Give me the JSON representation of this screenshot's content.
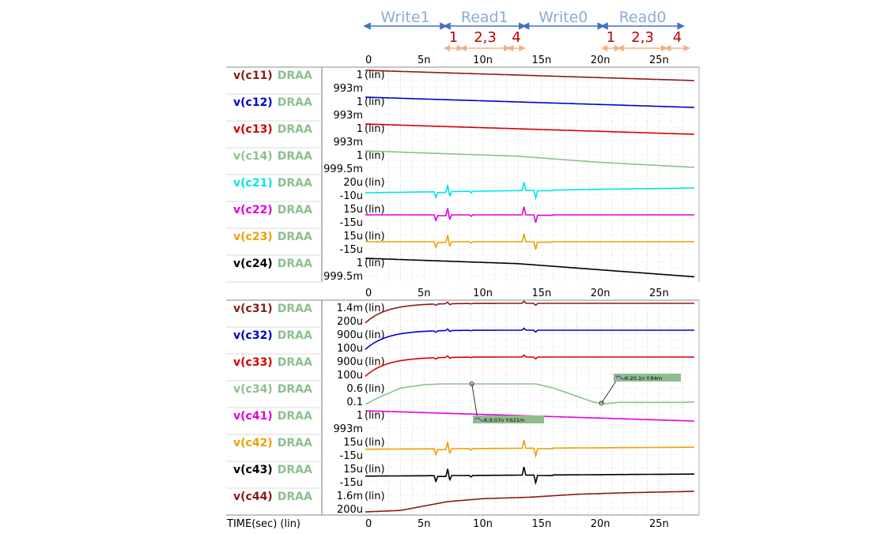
{
  "phases": [
    {
      "label": "Write1",
      "start": 0,
      "end": 6.8
    },
    {
      "label": "Read1",
      "start": 6.8,
      "end": 13.5
    },
    {
      "label": "Write0",
      "start": 13.5,
      "end": 20.2
    },
    {
      "label": "Read0",
      "start": 20.2,
      "end": 27
    }
  ],
  "subphases": [
    {
      "label": "1",
      "start": 6.8,
      "end": 8.2
    },
    {
      "label": "2,3",
      "start": 8.2,
      "end": 12.2
    },
    {
      "label": "4",
      "start": 12.2,
      "end": 13.5
    },
    {
      "label": "1",
      "start": 20.2,
      "end": 21.6
    },
    {
      "label": "2,3",
      "start": 21.6,
      "end": 25.6
    },
    {
      "label": "4",
      "start": 25.6,
      "end": 27.5
    }
  ],
  "colors": {
    "phase_text": "#8eaadb",
    "phase_arrow": "#4472c4",
    "subphase_text": "#c00000",
    "subphase_arrow": "#f4b183",
    "grid": "#c8c8c8",
    "suffix_green": "#8dbf8d",
    "cursor_box": "#8fbc8f"
  },
  "x_axis": {
    "min": 0,
    "max": 28,
    "ticks": [
      "0",
      "5n",
      "10n",
      "15n",
      "20n",
      "25n"
    ],
    "tick_values": [
      0,
      5,
      10,
      15,
      20,
      25
    ]
  },
  "footer_label": "TIME(sec) (lin)",
  "lin_label": "(lin)",
  "cursors": [
    {
      "text": "X:9.07n Y:621m"
    },
    {
      "text": "X:20.1n Y:84m"
    }
  ],
  "chart_data": {
    "type": "line",
    "xlabel": "TIME(sec) (lin)",
    "x_unit": "ns",
    "panels": [
      {
        "rows": [
          {
            "name": "v(c11)",
            "suffix": "DRAA",
            "color": "#8b1a1a",
            "ytop_label": "1",
            "ybot_label": "993m",
            "ylim": [
              0.993,
              1.0
            ],
            "shape": "linear",
            "x": [
              0,
              28
            ],
            "y": [
              1.0,
              0.9965
            ]
          },
          {
            "name": "v(c12)",
            "suffix": "DRAA",
            "color": "#0000cc",
            "ytop_label": "1",
            "ybot_label": "993m",
            "ylim": [
              0.993,
              1.0
            ],
            "shape": "linear",
            "x": [
              0,
              28
            ],
            "y": [
              1.0,
              0.9965
            ]
          },
          {
            "name": "v(c13)",
            "suffix": "DRAA",
            "color": "#d40000",
            "ytop_label": "1",
            "ybot_label": "993m",
            "ylim": [
              0.993,
              1.0
            ],
            "shape": "linear",
            "x": [
              0,
              28
            ],
            "y": [
              1.0,
              0.9965
            ]
          },
          {
            "name": "v(c14)",
            "suffix": "DRAA",
            "color": "#8dbf8d",
            "ytop_label": "1",
            "ybot_label": "999.5m",
            "ylim": [
              0.9995,
              1.0
            ],
            "shape": "points",
            "x": [
              0,
              13,
              20,
              28
            ],
            "y": [
              1.0,
              0.99987,
              0.99972,
              0.9996
            ]
          },
          {
            "name": "v(c21)",
            "suffix": "DRAA",
            "color": "#00e5e5",
            "ytop_label": "20u",
            "ybot_label": "-10u",
            "ylim": [
              -1e-05,
              2e-05
            ],
            "shape": "glitch",
            "base": [
              -2e-06,
              5e-06
            ]
          },
          {
            "name": "v(c22)",
            "suffix": "DRAA",
            "color": "#e000e0",
            "ytop_label": "15u",
            "ybot_label": "-15u",
            "ylim": [
              -1.5e-05,
              1.5e-05
            ],
            "shape": "glitch",
            "base": [
              0,
              0
            ]
          },
          {
            "name": "v(c23)",
            "suffix": "DRAA",
            "color": "#f0a000",
            "ytop_label": "15u",
            "ybot_label": "-15u",
            "ylim": [
              -1.5e-05,
              1.5e-05
            ],
            "shape": "glitch",
            "base": [
              0,
              0
            ]
          },
          {
            "name": "v(c24)",
            "suffix": "DRAA",
            "color": "#000000",
            "ytop_label": "1",
            "ybot_label": "999.5m",
            "ylim": [
              0.9995,
              1.0
            ],
            "shape": "points",
            "x": [
              0,
              13,
              20,
              28
            ],
            "y": [
              1.0,
              0.99987,
              0.99972,
              0.99955
            ]
          }
        ]
      },
      {
        "rows": [
          {
            "name": "v(c31)",
            "suffix": "DRAA",
            "color": "#8b1a1a",
            "ytop_label": "1.4m",
            "ybot_label": "200u",
            "ylim": [
              0.0002,
              0.0014
            ],
            "shape": "rise",
            "range": [
              0.00025,
              0.0014
            ],
            "tau": 1.8
          },
          {
            "name": "v(c32)",
            "suffix": "DRAA",
            "color": "#0000cc",
            "ytop_label": "900u",
            "ybot_label": "100u",
            "ylim": [
              0.0001,
              0.0009
            ],
            "shape": "rise",
            "range": [
              0.00015,
              0.0009
            ],
            "tau": 1.8
          },
          {
            "name": "v(c33)",
            "suffix": "DRAA",
            "color": "#d40000",
            "ytop_label": "900u",
            "ybot_label": "100u",
            "ylim": [
              0.0001,
              0.0009
            ],
            "shape": "rise",
            "range": [
              0.00015,
              0.0009
            ],
            "tau": 1.8
          },
          {
            "name": "v(c34)",
            "suffix": "DRAA",
            "color": "#8dbf8d",
            "ytop_label": "0.6",
            "ybot_label": "0.1",
            "ylim": [
              0.1,
              0.6
            ],
            "shape": "points",
            "x": [
              0,
              1,
              3,
              5,
              6.5,
              14.5,
              16,
              18,
              19.5,
              20.5,
              21.5,
              27,
              28
            ],
            "y": [
              0.1,
              0.25,
              0.5,
              0.58,
              0.6,
              0.6,
              0.5,
              0.3,
              0.15,
              0.12,
              0.15,
              0.15,
              0.16
            ]
          },
          {
            "name": "v(c41)",
            "suffix": "DRAA",
            "color": "#e000e0",
            "ytop_label": "1",
            "ybot_label": "993m",
            "ylim": [
              0.993,
              1.0
            ],
            "shape": "linear",
            "x": [
              0,
              28
            ],
            "y": [
              1.0,
              0.9965
            ]
          },
          {
            "name": "v(c42)",
            "suffix": "DRAA",
            "color": "#f0a000",
            "ytop_label": "15u",
            "ybot_label": "-15u",
            "ylim": [
              -1.5e-05,
              1.5e-05
            ],
            "shape": "glitch",
            "base": [
              -2e-06,
              1e-06
            ]
          },
          {
            "name": "v(c43)",
            "suffix": "DRAA",
            "color": "#000000",
            "ytop_label": "15u",
            "ybot_label": "-15u",
            "ylim": [
              -1.5e-05,
              1.5e-05
            ],
            "shape": "glitch",
            "base": [
              -2e-06,
              1e-06
            ]
          },
          {
            "name": "v(c44)",
            "suffix": "DRAA",
            "color": "#8b1a1a",
            "ytop_label": "1.6m",
            "ybot_label": "200u",
            "ylim": [
              0.0002,
              0.0016
            ],
            "shape": "points",
            "x": [
              0,
              3,
              5,
              7,
              10,
              14,
              18,
              22,
              28
            ],
            "y": [
              0.0002,
              0.0003,
              0.0006,
              0.0009,
              0.0011,
              0.0012,
              0.0014,
              0.0015,
              0.0016
            ]
          }
        ]
      }
    ],
    "spikes": [
      {
        "x": 6.0,
        "dir": -1,
        "mag": 0.55
      },
      {
        "x": 7.0,
        "dir": 1,
        "mag": 0.65
      },
      {
        "x": 7.2,
        "dir": -1,
        "mag": 0.4
      },
      {
        "x": 9.0,
        "dir": -1,
        "mag": 0.15
      },
      {
        "x": 13.5,
        "dir": 1,
        "mag": 0.8
      },
      {
        "x": 14.5,
        "dir": -1,
        "mag": 0.75
      }
    ]
  }
}
